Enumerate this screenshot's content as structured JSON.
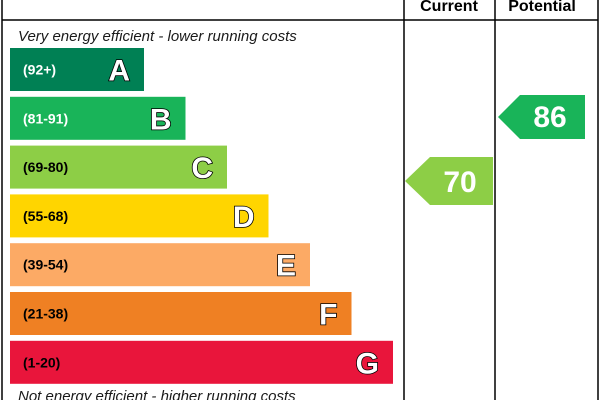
{
  "chart_data": {
    "type": "bar",
    "columns": {
      "current": "Current",
      "potential": "Potential"
    },
    "captions": {
      "top": "Very energy efficient - lower running costs",
      "bottom": "Not energy efficient - higher running costs"
    },
    "bands": [
      {
        "letter": "A",
        "range": "(92+)",
        "color": "#008054",
        "range_color": "#ffffff"
      },
      {
        "letter": "B",
        "range": "(81-91)",
        "color": "#19b459",
        "range_color": "#ffffff"
      },
      {
        "letter": "C",
        "range": "(69-80)",
        "color": "#8dce46",
        "range_color": "#000000"
      },
      {
        "letter": "D",
        "range": "(55-68)",
        "color": "#ffd500",
        "range_color": "#000000"
      },
      {
        "letter": "E",
        "range": "(39-54)",
        "color": "#fcaa65",
        "range_color": "#000000"
      },
      {
        "letter": "F",
        "range": "(21-38)",
        "color": "#ef8023",
        "range_color": "#000000"
      },
      {
        "letter": "G",
        "range": "(1-20)",
        "color": "#e9153b",
        "range_color": "#000000"
      }
    ],
    "current": {
      "value": 70,
      "band": "C",
      "color": "#8dce46"
    },
    "potential": {
      "value": 86,
      "band": "B",
      "color": "#19b459"
    }
  }
}
